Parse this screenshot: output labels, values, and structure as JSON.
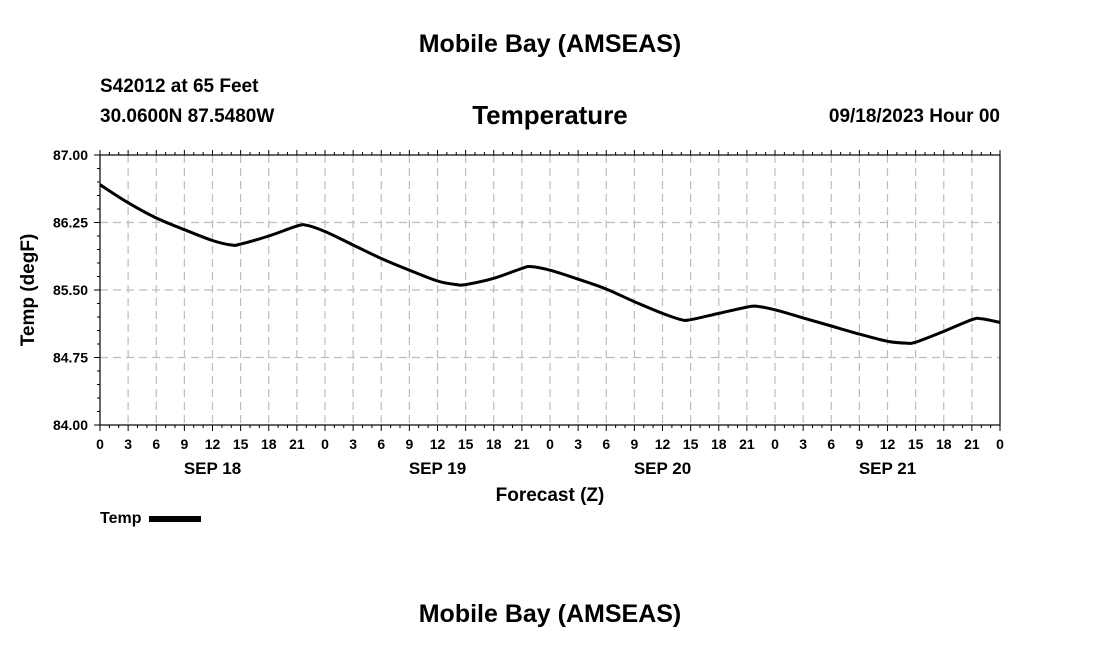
{
  "header": {
    "title": "Mobile Bay (AMSEAS)",
    "station": "S42012 at 65 Feet",
    "coordinates": "30.0600N  87.5480W",
    "run_time": "09/18/2023 Hour 00"
  },
  "footer": {
    "title": "Mobile Bay (AMSEAS)"
  },
  "chart_data": {
    "type": "line",
    "title": "Temperature",
    "xlabel": "Forecast (Z)",
    "ylabel": "Temp (degF)",
    "ylim": [
      84.0,
      87.0
    ],
    "yticks": [
      "84.00",
      "84.75",
      "85.50",
      "86.25",
      "87.00"
    ],
    "xlim_hours": [
      0,
      96
    ],
    "xtick_labels": [
      "0",
      "3",
      "6",
      "9",
      "12",
      "15",
      "18",
      "21",
      "0",
      "3",
      "6",
      "9",
      "12",
      "15",
      "18",
      "21",
      "0",
      "3",
      "6",
      "9",
      "12",
      "15",
      "18",
      "21",
      "0",
      "3",
      "6",
      "9",
      "12",
      "15",
      "18",
      "21",
      "0"
    ],
    "day_labels": [
      "SEP 18",
      "SEP 19",
      "SEP 20",
      "SEP 21"
    ],
    "grid": true,
    "legend_position": "bottom-left",
    "series": [
      {
        "name": "Temp",
        "color": "#000000",
        "x": [
          0,
          3,
          6,
          9,
          12,
          14,
          15,
          18,
          21,
          22,
          24,
          27,
          30,
          33,
          36,
          38,
          39,
          42,
          45,
          46,
          48,
          51,
          54,
          57,
          60,
          62,
          63,
          66,
          69,
          70,
          72,
          75,
          78,
          81,
          84,
          86,
          87,
          90,
          93,
          94,
          96
        ],
        "y": [
          86.67,
          86.47,
          86.3,
          86.17,
          86.05,
          86.0,
          86.01,
          86.1,
          86.21,
          86.22,
          86.15,
          86.0,
          85.85,
          85.72,
          85.6,
          85.56,
          85.56,
          85.63,
          85.74,
          85.76,
          85.72,
          85.62,
          85.51,
          85.37,
          85.24,
          85.17,
          85.17,
          85.24,
          85.31,
          85.32,
          85.28,
          85.19,
          85.1,
          85.01,
          84.93,
          84.91,
          84.92,
          85.04,
          85.17,
          85.18,
          85.14
        ]
      }
    ]
  }
}
